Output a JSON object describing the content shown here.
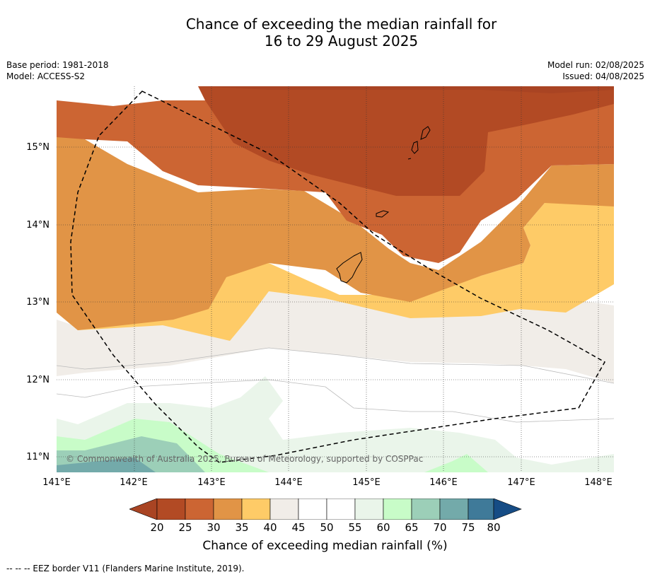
{
  "header": {
    "title_line1": "Chance of exceeding the median rainfall for",
    "title_line2": "16 to 29 August 2025",
    "base_period": "Base period: 1981-2018",
    "model": "Model: ACCESS-S2",
    "model_run": "Model run: 02/08/2025",
    "issued": "Issued: 04/08/2025"
  },
  "map": {
    "lat_labels": [
      "15°N",
      "14°N",
      "13°N",
      "12°N",
      "11°N"
    ],
    "lon_labels": [
      "141°E",
      "142°E",
      "143°E",
      "144°E",
      "145°E",
      "146°E",
      "147°E",
      "148°E"
    ],
    "copyright": "© Commonwealth of Australia 2025, Bureau of Meteorology, supported by COSPPac"
  },
  "colorbar": {
    "ticks": [
      "20",
      "25",
      "30",
      "35",
      "40",
      "45",
      "50",
      "55",
      "60",
      "65",
      "70",
      "75",
      "80"
    ],
    "title": "Chance of exceeding median rainfall (%)",
    "colors": [
      "#a94423",
      "#b24a24",
      "#cc6533",
      "#e19446",
      "#fecb67",
      "#f1ede8",
      "#ffffff",
      "#ffffff",
      "#eaf5ea",
      "#c8fcc8",
      "#9ccfb8",
      "#73aaaa",
      "#3f7a99",
      "#164c85"
    ]
  },
  "footnote": "--  --  -- EEZ border V11 (Flanders Marine Institute, 2019)."
}
